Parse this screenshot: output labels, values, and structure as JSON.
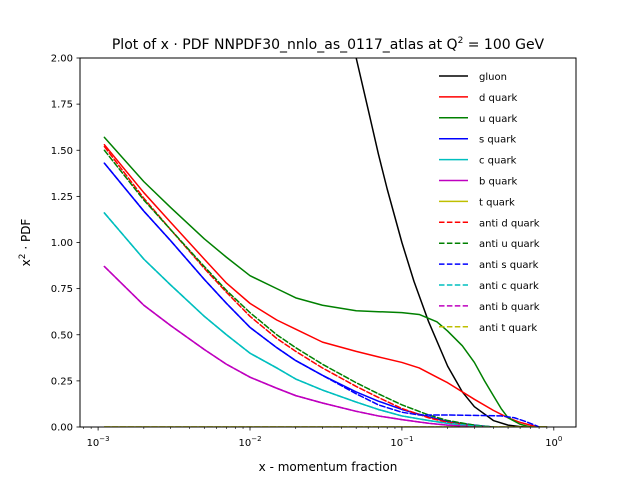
{
  "chart_data": {
    "type": "line",
    "title_main": "Plot of x · PDF NNPDF30_nnlo_as_0117_atlas at Q",
    "title_sup": "2",
    "title_tail": " = 100 GeV",
    "xlabel": "x - momentum fraction",
    "ylabel_main": "x",
    "ylabel_sup": "2",
    "ylabel_tail": " · PDF",
    "xscale": "log",
    "xlim": [
      0.00076,
      1.4
    ],
    "ylim": [
      0,
      2.0
    ],
    "grid": false,
    "legend_position": "top-right",
    "xticks": [
      {
        "value": 0.001,
        "base": "10",
        "exp": "−3"
      },
      {
        "value": 0.01,
        "base": "10",
        "exp": "−2"
      },
      {
        "value": 0.1,
        "base": "10",
        "exp": "−1"
      },
      {
        "value": 1,
        "base": "10",
        "exp": "0"
      }
    ],
    "yticks": [
      "0.00",
      "0.25",
      "0.50",
      "0.75",
      "1.00",
      "1.25",
      "1.50",
      "1.75",
      "2.00"
    ],
    "series": [
      {
        "name": "gluon",
        "color": "#000000",
        "dash": "solid",
        "points": [
          [
            0.05,
            2.0
          ],
          [
            0.06,
            1.72
          ],
          [
            0.07,
            1.48
          ],
          [
            0.08,
            1.29
          ],
          [
            0.1,
            1.0
          ],
          [
            0.12,
            0.79
          ],
          [
            0.15,
            0.57
          ],
          [
            0.2,
            0.33
          ],
          [
            0.25,
            0.19
          ],
          [
            0.3,
            0.11
          ],
          [
            0.4,
            0.035
          ],
          [
            0.5,
            0.01
          ],
          [
            0.6,
            0.002
          ],
          [
            0.75,
            0.0
          ],
          [
            0.9,
            0.0
          ]
        ]
      },
      {
        "name": "d quark",
        "color": "#ff0000",
        "dash": "solid",
        "points": [
          [
            0.0011,
            1.53
          ],
          [
            0.002,
            1.27
          ],
          [
            0.003,
            1.11
          ],
          [
            0.005,
            0.91
          ],
          [
            0.007,
            0.78
          ],
          [
            0.01,
            0.67
          ],
          [
            0.015,
            0.58
          ],
          [
            0.02,
            0.53
          ],
          [
            0.03,
            0.46
          ],
          [
            0.05,
            0.41
          ],
          [
            0.07,
            0.38
          ],
          [
            0.1,
            0.35
          ],
          [
            0.13,
            0.32
          ],
          [
            0.17,
            0.27
          ],
          [
            0.2,
            0.24
          ],
          [
            0.3,
            0.15
          ],
          [
            0.4,
            0.09
          ],
          [
            0.5,
            0.05
          ],
          [
            0.6,
            0.025
          ],
          [
            0.7,
            0.01
          ],
          [
            0.8,
            0.0
          ]
        ]
      },
      {
        "name": "u quark",
        "color": "#008000",
        "dash": "solid",
        "points": [
          [
            0.0011,
            1.57
          ],
          [
            0.002,
            1.33
          ],
          [
            0.003,
            1.19
          ],
          [
            0.005,
            1.02
          ],
          [
            0.007,
            0.92
          ],
          [
            0.01,
            0.82
          ],
          [
            0.015,
            0.75
          ],
          [
            0.02,
            0.7
          ],
          [
            0.03,
            0.66
          ],
          [
            0.05,
            0.63
          ],
          [
            0.07,
            0.625
          ],
          [
            0.1,
            0.62
          ],
          [
            0.13,
            0.61
          ],
          [
            0.17,
            0.57
          ],
          [
            0.2,
            0.52
          ],
          [
            0.25,
            0.44
          ],
          [
            0.3,
            0.35
          ],
          [
            0.35,
            0.25
          ],
          [
            0.4,
            0.17
          ],
          [
            0.45,
            0.1
          ],
          [
            0.5,
            0.05
          ],
          [
            0.6,
            0.015
          ],
          [
            0.7,
            0.0
          ]
        ]
      },
      {
        "name": "s quark",
        "color": "#0000ff",
        "dash": "solid",
        "points": [
          [
            0.0011,
            1.43
          ],
          [
            0.002,
            1.17
          ],
          [
            0.003,
            1.01
          ],
          [
            0.005,
            0.8
          ],
          [
            0.007,
            0.67
          ],
          [
            0.01,
            0.54
          ],
          [
            0.015,
            0.43
          ],
          [
            0.02,
            0.36
          ],
          [
            0.03,
            0.28
          ],
          [
            0.05,
            0.19
          ],
          [
            0.07,
            0.14
          ],
          [
            0.1,
            0.095
          ],
          [
            0.15,
            0.055
          ],
          [
            0.2,
            0.03
          ],
          [
            0.3,
            0.01
          ],
          [
            0.4,
            0.0
          ]
        ]
      },
      {
        "name": "c quark",
        "color": "#00bfbf",
        "dash": "solid",
        "points": [
          [
            0.0011,
            1.16
          ],
          [
            0.002,
            0.91
          ],
          [
            0.003,
            0.77
          ],
          [
            0.005,
            0.6
          ],
          [
            0.007,
            0.5
          ],
          [
            0.01,
            0.4
          ],
          [
            0.015,
            0.32
          ],
          [
            0.02,
            0.26
          ],
          [
            0.03,
            0.2
          ],
          [
            0.05,
            0.135
          ],
          [
            0.07,
            0.095
          ],
          [
            0.1,
            0.06
          ],
          [
            0.15,
            0.035
          ],
          [
            0.2,
            0.02
          ],
          [
            0.3,
            0.005
          ],
          [
            0.4,
            0.0
          ]
        ]
      },
      {
        "name": "b quark",
        "color": "#bf00bf",
        "dash": "solid",
        "points": [
          [
            0.0011,
            0.87
          ],
          [
            0.002,
            0.66
          ],
          [
            0.003,
            0.55
          ],
          [
            0.005,
            0.42
          ],
          [
            0.007,
            0.34
          ],
          [
            0.01,
            0.27
          ],
          [
            0.015,
            0.21
          ],
          [
            0.02,
            0.17
          ],
          [
            0.03,
            0.13
          ],
          [
            0.05,
            0.085
          ],
          [
            0.07,
            0.06
          ],
          [
            0.1,
            0.04
          ],
          [
            0.15,
            0.02
          ],
          [
            0.2,
            0.01
          ],
          [
            0.3,
            0.0
          ]
        ]
      },
      {
        "name": "t quark",
        "color": "#bfbf00",
        "dash": "solid",
        "points": [
          [
            0.0011,
            0.0
          ],
          [
            0.9,
            0.0
          ]
        ]
      },
      {
        "name": "anti d quark",
        "color": "#ff0000",
        "dash": "dashed",
        "points": [
          [
            0.0011,
            1.52
          ],
          [
            0.002,
            1.24
          ],
          [
            0.003,
            1.07
          ],
          [
            0.005,
            0.86
          ],
          [
            0.007,
            0.73
          ],
          [
            0.01,
            0.6
          ],
          [
            0.015,
            0.48
          ],
          [
            0.02,
            0.41
          ],
          [
            0.03,
            0.32
          ],
          [
            0.05,
            0.22
          ],
          [
            0.07,
            0.16
          ],
          [
            0.1,
            0.1
          ],
          [
            0.15,
            0.05
          ],
          [
            0.2,
            0.025
          ],
          [
            0.3,
            0.005
          ],
          [
            0.4,
            0.0
          ]
        ]
      },
      {
        "name": "anti u quark",
        "color": "#008000",
        "dash": "dashed",
        "points": [
          [
            0.0011,
            1.5
          ],
          [
            0.002,
            1.23
          ],
          [
            0.003,
            1.07
          ],
          [
            0.005,
            0.87
          ],
          [
            0.007,
            0.74
          ],
          [
            0.01,
            0.62
          ],
          [
            0.015,
            0.5
          ],
          [
            0.02,
            0.43
          ],
          [
            0.03,
            0.34
          ],
          [
            0.05,
            0.24
          ],
          [
            0.07,
            0.18
          ],
          [
            0.1,
            0.12
          ],
          [
            0.15,
            0.065
          ],
          [
            0.2,
            0.035
          ],
          [
            0.3,
            0.01
          ],
          [
            0.4,
            0.0
          ]
        ]
      },
      {
        "name": "anti s quark",
        "color": "#0000ff",
        "dash": "dashed",
        "points": [
          [
            0.0011,
            1.43
          ],
          [
            0.002,
            1.17
          ],
          [
            0.003,
            1.01
          ],
          [
            0.005,
            0.8
          ],
          [
            0.007,
            0.67
          ],
          [
            0.01,
            0.54
          ],
          [
            0.015,
            0.43
          ],
          [
            0.02,
            0.36
          ],
          [
            0.03,
            0.28
          ],
          [
            0.05,
            0.18
          ],
          [
            0.07,
            0.12
          ],
          [
            0.1,
            0.08
          ],
          [
            0.13,
            0.065
          ],
          [
            0.2,
            0.065
          ],
          [
            0.3,
            0.063
          ],
          [
            0.45,
            0.06
          ],
          [
            0.55,
            0.05
          ],
          [
            0.65,
            0.03
          ],
          [
            0.75,
            0.01
          ],
          [
            0.8,
            0.0
          ]
        ]
      },
      {
        "name": "anti c quark",
        "color": "#00bfbf",
        "dash": "dashed",
        "points": [
          [
            0.0011,
            1.16
          ],
          [
            0.002,
            0.91
          ],
          [
            0.003,
            0.77
          ],
          [
            0.005,
            0.6
          ],
          [
            0.007,
            0.5
          ],
          [
            0.01,
            0.4
          ],
          [
            0.015,
            0.32
          ],
          [
            0.02,
            0.26
          ],
          [
            0.03,
            0.2
          ],
          [
            0.05,
            0.135
          ],
          [
            0.07,
            0.095
          ],
          [
            0.1,
            0.06
          ],
          [
            0.15,
            0.035
          ],
          [
            0.2,
            0.02
          ],
          [
            0.3,
            0.005
          ],
          [
            0.4,
            0.0
          ]
        ]
      },
      {
        "name": "anti b quark",
        "color": "#bf00bf",
        "dash": "dashed",
        "points": [
          [
            0.0011,
            0.87
          ],
          [
            0.002,
            0.66
          ],
          [
            0.003,
            0.55
          ],
          [
            0.005,
            0.42
          ],
          [
            0.007,
            0.34
          ],
          [
            0.01,
            0.27
          ],
          [
            0.015,
            0.21
          ],
          [
            0.02,
            0.17
          ],
          [
            0.03,
            0.13
          ],
          [
            0.05,
            0.085
          ],
          [
            0.07,
            0.06
          ],
          [
            0.1,
            0.04
          ],
          [
            0.15,
            0.02
          ],
          [
            0.2,
            0.01
          ],
          [
            0.3,
            0.0
          ]
        ]
      },
      {
        "name": "anti t quark",
        "color": "#bfbf00",
        "dash": "dashed",
        "points": [
          [
            0.0011,
            0.0
          ],
          [
            0.9,
            0.0
          ]
        ]
      }
    ]
  }
}
